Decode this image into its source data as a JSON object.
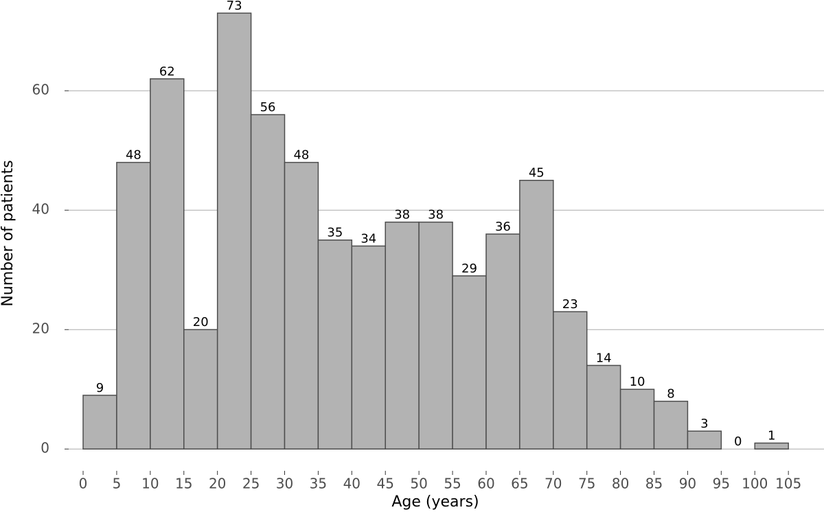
{
  "chart_data": {
    "type": "histogram",
    "xlabel": "Age (years)",
    "ylabel": "Number of patients",
    "bins": [
      0,
      5,
      10,
      15,
      20,
      25,
      30,
      35,
      40,
      45,
      50,
      55,
      60,
      65,
      70,
      75,
      80,
      85,
      90,
      95,
      100,
      105
    ],
    "counts": [
      9,
      48,
      62,
      20,
      73,
      56,
      48,
      35,
      34,
      38,
      38,
      29,
      36,
      45,
      23,
      14,
      10,
      8,
      3,
      0,
      1
    ],
    "color": "#b3b3b3",
    "edgecolor": "#4d4d4d",
    "xlim": [
      -2.15,
      110.3
    ],
    "ylim": [
      -3.65,
      75.2
    ],
    "xticks": [
      0,
      5,
      10,
      15,
      20,
      25,
      30,
      35,
      40,
      45,
      50,
      55,
      60,
      65,
      70,
      75,
      80,
      85,
      90,
      95,
      100,
      105
    ],
    "yticks": [
      0,
      20,
      40,
      60
    ],
    "grid": true
  }
}
